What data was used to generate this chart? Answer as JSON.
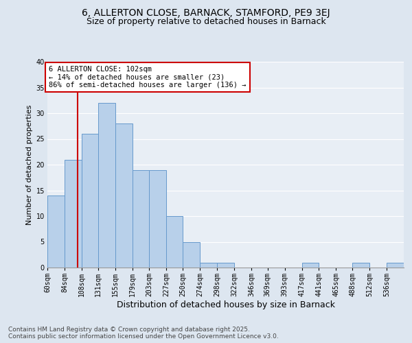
{
  "title1": "6, ALLERTON CLOSE, BARNACK, STAMFORD, PE9 3EJ",
  "title2": "Size of property relative to detached houses in Barnack",
  "xlabel": "Distribution of detached houses by size in Barnack",
  "ylabel": "Number of detached properties",
  "bin_labels": [
    "60sqm",
    "84sqm",
    "108sqm",
    "131sqm",
    "155sqm",
    "179sqm",
    "203sqm",
    "227sqm",
    "250sqm",
    "274sqm",
    "298sqm",
    "322sqm",
    "346sqm",
    "369sqm",
    "393sqm",
    "417sqm",
    "441sqm",
    "465sqm",
    "488sqm",
    "512sqm",
    "536sqm"
  ],
  "bin_edges": [
    60,
    84,
    108,
    131,
    155,
    179,
    203,
    227,
    250,
    274,
    298,
    322,
    346,
    369,
    393,
    417,
    441,
    465,
    488,
    512,
    536,
    560
  ],
  "values": [
    14,
    21,
    26,
    32,
    28,
    19,
    19,
    10,
    5,
    1,
    1,
    0,
    0,
    0,
    0,
    1,
    0,
    0,
    1,
    0,
    1
  ],
  "bar_color": "#b8d0ea",
  "bar_edge_color": "#6699cc",
  "vline_x": 102,
  "vline_color": "#cc0000",
  "annotation_text": "6 ALLERTON CLOSE: 102sqm\n← 14% of detached houses are smaller (23)\n86% of semi-detached houses are larger (136) →",
  "annotation_box_color": "#ffffff",
  "annotation_box_edge": "#cc0000",
  "bg_color": "#dde6f0",
  "plot_bg_color": "#e8eef5",
  "grid_color": "#ffffff",
  "ylim": [
    0,
    40
  ],
  "yticks": [
    0,
    5,
    10,
    15,
    20,
    25,
    30,
    35,
    40
  ],
  "footer": "Contains HM Land Registry data © Crown copyright and database right 2025.\nContains public sector information licensed under the Open Government Licence v3.0.",
  "title1_fontsize": 10,
  "title2_fontsize": 9,
  "xlabel_fontsize": 9,
  "ylabel_fontsize": 8,
  "tick_fontsize": 7,
  "annot_fontsize": 7.5,
  "footer_fontsize": 6.5
}
